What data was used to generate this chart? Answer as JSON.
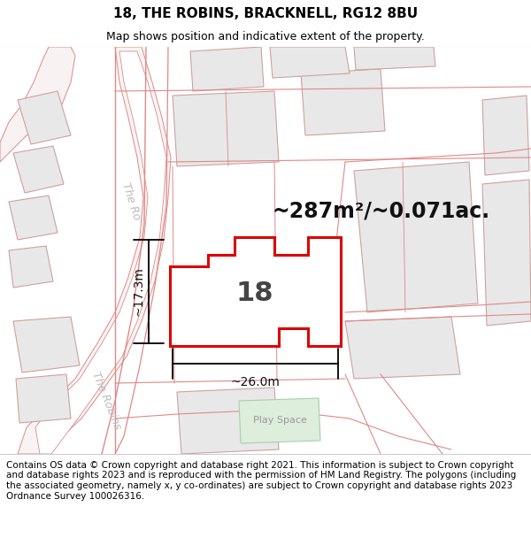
{
  "title": "18, THE ROBINS, BRACKNELL, RG12 8BU",
  "subtitle": "Map shows position and indicative extent of the property.",
  "footer": "Contains OS data © Crown copyright and database right 2021. This information is subject to Crown copyright and database rights 2023 and is reproduced with the permission of HM Land Registry. The polygons (including the associated geometry, namely x, y co-ordinates) are subject to Crown copyright and database rights 2023 Ordnance Survey 100026316.",
  "area_text": "~287m²/~0.071ac.",
  "label_18": "18",
  "dim_width": "~26.0m",
  "dim_height": "~17.3m",
  "play_space_label": "Play Space",
  "road_label_robins_lower": "The Robins",
  "road_label_robins_upper": "The Ro",
  "bg_color": "#ffffff",
  "map_bg": "#ffffff",
  "neighbor_fill": "#e8e8e8",
  "neighbor_edge": "#d0a0a0",
  "road_line_color": "#e08888",
  "property_fill": "#ffffff",
  "property_edge": "#dd0000",
  "play_space_fill": "#ddeedd",
  "play_space_edge": "#aaccaa",
  "title_fontsize": 11,
  "subtitle_fontsize": 9,
  "footer_fontsize": 7.5,
  "area_fontsize": 17,
  "label_fontsize": 22,
  "dim_fontsize": 10,
  "road_label_fontsize": 10,
  "road_label_color": "#bbbbbb"
}
